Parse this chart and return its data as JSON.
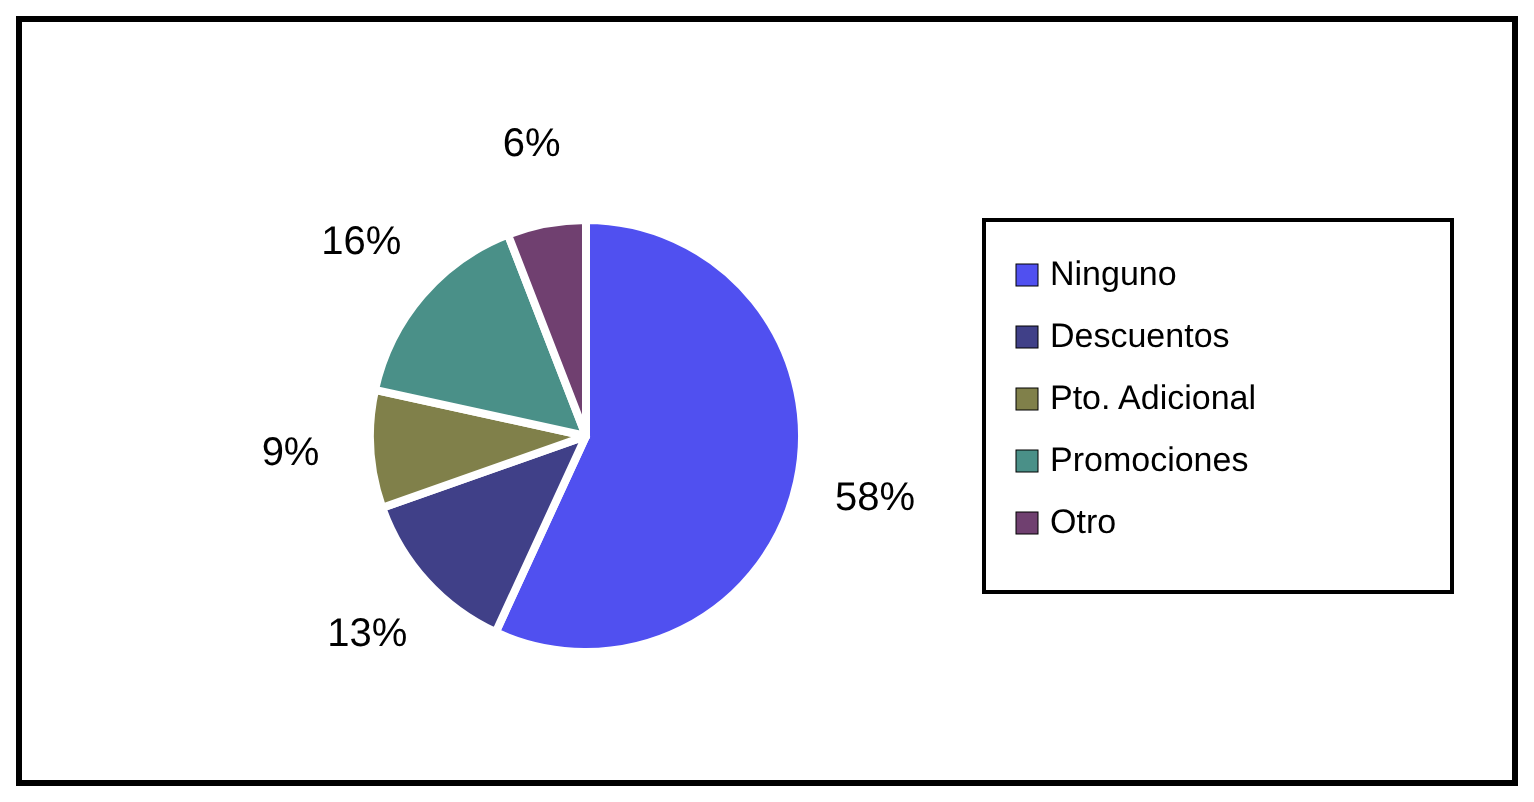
{
  "chart_data": {
    "type": "pie",
    "categories": [
      "Ninguno",
      "Descuentos",
      "Pto. Adicional",
      "Promociones",
      "Otro"
    ],
    "values": [
      58,
      13,
      9,
      16,
      6
    ],
    "value_labels": [
      "58%",
      "13%",
      "9%",
      "16%",
      "6%"
    ],
    "colors": [
      "#5050f0",
      "#404088",
      "#80804a",
      "#4a9088",
      "#704070"
    ],
    "legend": "right"
  }
}
